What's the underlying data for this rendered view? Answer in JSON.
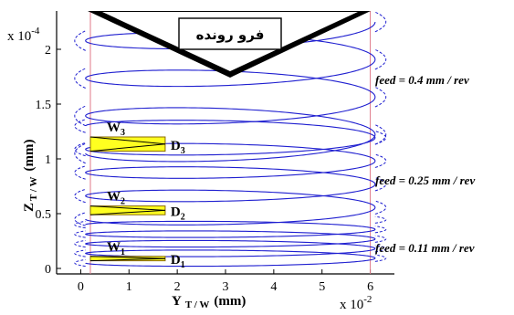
{
  "chart_data": {
    "type": "line",
    "xlabel_main": "Y",
    "xlabel_sub": "T / W",
    "xlabel_unit": "(mm)",
    "ylabel_main": "Z",
    "ylabel_sub": "T / W",
    "ylabel_unit": "(mm)",
    "x_multiplier": "x 10",
    "x_multiplier_exp": "-2",
    "y_multiplier": "x 10",
    "y_multiplier_exp": "-4",
    "xlim": [
      -0.5,
      6.5
    ],
    "ylim": [
      -0.05,
      2.35
    ],
    "x_scale": 0.01,
    "y_scale": 0.0001,
    "xticks": [
      0,
      1,
      2,
      3,
      4,
      5,
      6
    ],
    "xtick_labels": [
      "0",
      "1",
      "2",
      "3",
      "4",
      "5",
      "6"
    ],
    "yticks": [
      0,
      0.5,
      1,
      1.5,
      2
    ],
    "ytick_labels": [
      "0",
      "0.5",
      "1",
      "1.5",
      "2"
    ],
    "boundaries_x": [
      0.2,
      6.0
    ],
    "tool_label": "فرو رونده",
    "series": [
      {
        "feed_label": "feed = 0.11 mm / rev",
        "z_start": 0.05,
        "z_end": 0.4,
        "amplitude": 0.05,
        "turns": 4
      },
      {
        "feed_label": "feed = 0.25 mm / rev",
        "z_start": 0.45,
        "z_end": 1.3,
        "amplitude": 0.1,
        "turns": 4
      },
      {
        "feed_label": "feed = 0.4 mm / rev",
        "z_start": 1.05,
        "z_end": 2.25,
        "amplitude": 0.15,
        "turns": 3.5
      }
    ],
    "wedges": [
      {
        "w_label": "W",
        "w_sub": "1",
        "d_label": "D",
        "d_sub": "1",
        "x0": 0.2,
        "x1": 1.75,
        "z0": 0.07,
        "z1": 0.11
      },
      {
        "w_label": "W",
        "w_sub": "2",
        "d_label": "D",
        "d_sub": "2",
        "x0": 0.2,
        "x1": 1.75,
        "z0": 0.49,
        "z1": 0.57
      },
      {
        "w_label": "W",
        "w_sub": "3",
        "d_label": "D",
        "d_sub": "3",
        "x0": 0.2,
        "x1": 1.75,
        "z0": 1.07,
        "z1": 1.2
      }
    ],
    "colors": {
      "helix": "#1f1fd0",
      "boundary": "#e07a8a",
      "wedge_fill": "#ffff20",
      "wedge_stroke": "#8a6a00",
      "tool": "#000000",
      "tool_fill": "#ffffff"
    }
  }
}
